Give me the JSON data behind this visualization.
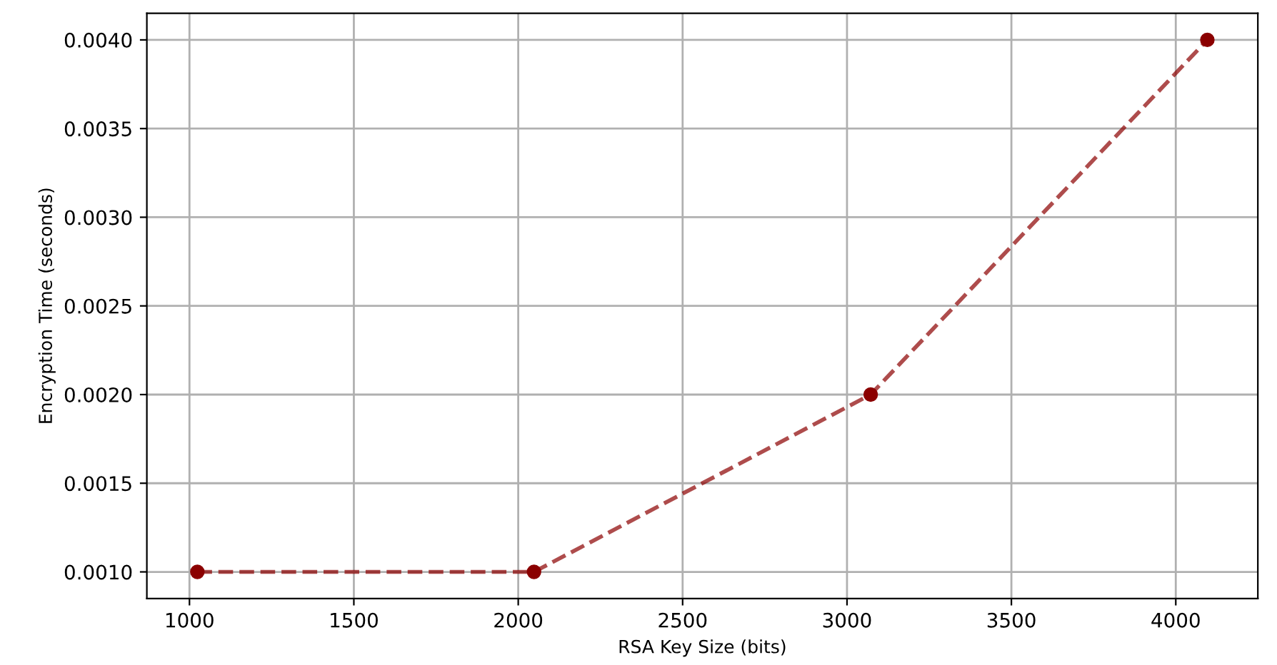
{
  "chart_data": {
    "type": "line",
    "xlabel": "RSA Key Size (bits)",
    "ylabel": "Encryption Time (seconds)",
    "x": [
      1024,
      2048,
      3072,
      4096
    ],
    "series": [
      {
        "color": "#8b0000",
        "values": [
          0.001,
          0.001,
          0.002,
          0.004
        ]
      }
    ],
    "xlim": [
      870.4,
      4249.6
    ],
    "xticks": [
      1000,
      1500,
      2000,
      2500,
      3000,
      3500,
      4000
    ],
    "ylim": [
      0.00085,
      0.00415
    ],
    "yticks": [
      {
        "value": 0.001,
        "label": "0.0010"
      },
      {
        "value": 0.0015,
        "label": "0.0015"
      },
      {
        "value": 0.002,
        "label": "0.0020"
      },
      {
        "value": 0.0025,
        "label": "0.0025"
      },
      {
        "value": 0.003,
        "label": "0.0030"
      },
      {
        "value": 0.0035,
        "label": "0.0035"
      },
      {
        "value": 0.004,
        "label": "0.0040"
      }
    ],
    "grid": true,
    "marker": "circle",
    "line_style": "dashed"
  }
}
